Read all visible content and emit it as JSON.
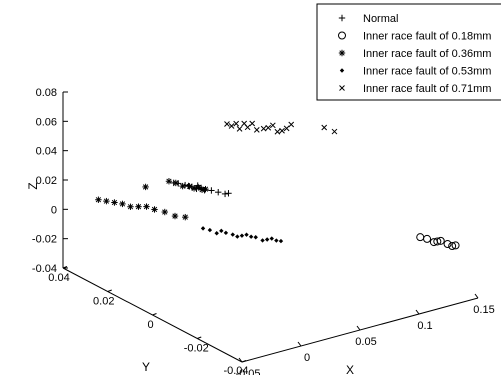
{
  "chart_data": {
    "type": "scatter",
    "projection": "3d",
    "title": "",
    "xlabel": "X",
    "ylabel": "Y",
    "zlabel": "Z",
    "xlim": [
      -0.05,
      0.15
    ],
    "ylim": [
      -0.04,
      0.04
    ],
    "zlim": [
      -0.04,
      0.08
    ],
    "x_ticks": [
      "-0.05",
      "0",
      "0.05",
      "0.1",
      "0.15"
    ],
    "y_ticks": [
      "0.04",
      "0.02",
      "0",
      "-0.02",
      "-0.04"
    ],
    "z_ticks": [
      "0.08",
      "0.06",
      "0.04",
      "0.02",
      "0",
      "-0.02",
      "-0.04"
    ],
    "grid": false,
    "legend_position": "top-right",
    "colors": {
      "marker": "#000000",
      "axes": "#000000",
      "background": "#ffffff"
    },
    "series": [
      {
        "name": "Normal",
        "marker": "plus",
        "points": [
          [
            0.04,
            0.038,
            0.0
          ],
          [
            0.042,
            0.037,
            0.0
          ],
          [
            0.044,
            0.035,
            0.0
          ],
          [
            0.045,
            0.034,
            0.0
          ],
          [
            0.046,
            0.033,
            0.0
          ],
          [
            0.048,
            0.032,
            -0.001
          ],
          [
            0.049,
            0.032,
            0.001
          ],
          [
            0.05,
            0.031,
            0.0
          ],
          [
            0.051,
            0.03,
            -0.001
          ],
          [
            0.053,
            0.028,
            0.0
          ],
          [
            0.055,
            0.026,
            0.0
          ],
          [
            0.057,
            0.024,
            0.0
          ],
          [
            0.058,
            0.023,
            0.001
          ]
        ]
      },
      {
        "name": "Inner race fault of 0.18mm",
        "marker": "circle",
        "points": [
          [
            0.12,
            -0.03,
            0.0
          ],
          [
            0.122,
            -0.032,
            0.0
          ],
          [
            0.124,
            -0.034,
            -0.001
          ],
          [
            0.125,
            -0.035,
            0.0
          ],
          [
            0.126,
            -0.036,
            0.001
          ],
          [
            0.128,
            -0.038,
            0.0
          ],
          [
            0.13,
            -0.039,
            -0.001
          ],
          [
            0.131,
            -0.04,
            0.0
          ]
        ]
      },
      {
        "name": "Inner race fault of 0.36mm",
        "marker": "asterisk",
        "points": [
          [
            0.02,
            0.04,
            0.0
          ],
          [
            -0.02,
            0.04,
            0.0
          ],
          [
            -0.017,
            0.038,
            0.0
          ],
          [
            -0.014,
            0.036,
            0.0
          ],
          [
            -0.011,
            0.034,
            0.0
          ],
          [
            -0.008,
            0.032,
            -0.001
          ],
          [
            -0.005,
            0.03,
            0.0
          ],
          [
            -0.002,
            0.028,
            0.001
          ],
          [
            0.001,
            0.026,
            0.0
          ],
          [
            0.004,
            0.023,
            0.0
          ],
          [
            0.007,
            0.02,
            -0.001
          ],
          [
            0.01,
            0.017,
            0.0
          ],
          [
            0.036,
            0.038,
            0.002
          ],
          [
            0.038,
            0.036,
            0.002
          ],
          [
            0.04,
            0.034,
            0.001
          ],
          [
            0.042,
            0.032,
            0.002
          ],
          [
            0.044,
            0.031,
            0.001
          ],
          [
            0.046,
            0.03,
            0.002
          ],
          [
            0.047,
            0.029,
            0.001
          ],
          [
            0.048,
            0.028,
            0.002
          ]
        ]
      },
      {
        "name": "Inner race fault of 0.53mm",
        "marker": "dot",
        "points": [
          [
            0.008,
            0.008,
            0.0
          ],
          [
            0.01,
            0.006,
            0.0
          ],
          [
            0.012,
            0.004,
            -0.001
          ],
          [
            0.014,
            0.003,
            0.001
          ],
          [
            0.016,
            0.002,
            0.0
          ],
          [
            0.018,
            0.0,
            0.0
          ],
          [
            0.02,
            -0.001,
            -0.001
          ],
          [
            0.022,
            -0.002,
            0.0
          ],
          [
            0.024,
            -0.003,
            0.001
          ],
          [
            0.026,
            -0.004,
            0.0
          ],
          [
            0.028,
            -0.005,
            0.0
          ],
          [
            0.03,
            -0.007,
            -0.001
          ],
          [
            0.032,
            -0.008,
            0.0
          ],
          [
            0.034,
            -0.009,
            0.001
          ],
          [
            0.036,
            -0.01,
            0.0
          ],
          [
            0.038,
            -0.011,
            0.0
          ]
        ]
      },
      {
        "name": "Inner race fault of 0.71mm",
        "marker": "cross",
        "points": [
          [
            0.07,
            0.03,
            0.04
          ],
          [
            0.072,
            0.029,
            0.039
          ],
          [
            0.074,
            0.028,
            0.041
          ],
          [
            0.075,
            0.027,
            0.038
          ],
          [
            0.077,
            0.026,
            0.042
          ],
          [
            0.078,
            0.025,
            0.04
          ],
          [
            0.08,
            0.024,
            0.043
          ],
          [
            0.082,
            0.023,
            0.039
          ],
          [
            0.084,
            0.021,
            0.041
          ],
          [
            0.086,
            0.02,
            0.042
          ],
          [
            0.088,
            0.019,
            0.044
          ],
          [
            0.09,
            0.018,
            0.04
          ],
          [
            0.092,
            0.017,
            0.041
          ],
          [
            0.094,
            0.016,
            0.043
          ],
          [
            0.096,
            0.015,
            0.046
          ],
          [
            0.105,
            0.005,
            0.05
          ],
          [
            0.108,
            0.002,
            0.049
          ]
        ]
      }
    ]
  }
}
